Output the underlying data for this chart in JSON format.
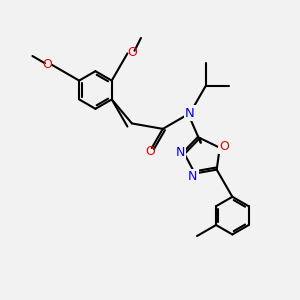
{
  "bg_color": "#f2f2f2",
  "bond_color": "#000000",
  "N_color": "#0000ee",
  "O_color": "#ee0000",
  "bond_lw": 1.5,
  "font_size": 8.5,
  "figsize": [
    3.0,
    3.0
  ],
  "dpi": 100,
  "xlim": [
    -1.5,
    9.5
  ],
  "ylim": [
    -1.0,
    9.0
  ]
}
